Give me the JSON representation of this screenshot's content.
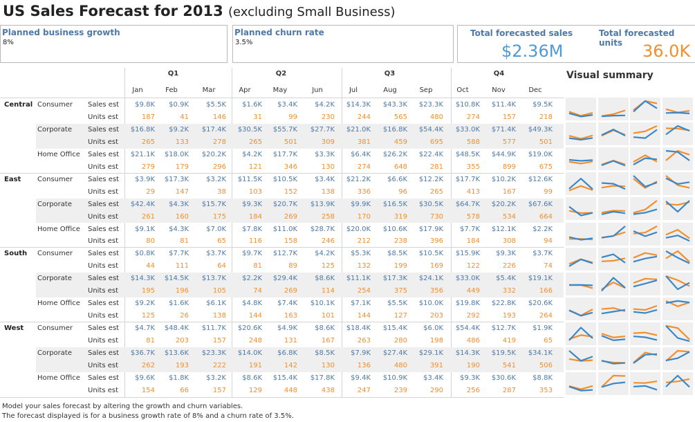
{
  "title": "US Sales Forecast for 2013",
  "subtitle": "(excluding Small Business)",
  "params": {
    "growth": {
      "label": "Planned business growth",
      "value": "8%"
    },
    "churn": {
      "label": "Planned churn rate",
      "value": "3.5%"
    }
  },
  "kpi": {
    "sales_label": "Total forecasted sales",
    "sales_value": "$2.36M",
    "units_label": "Total forecasted units",
    "units_value": "36.0K"
  },
  "visual_summary_title": "Visual summary",
  "colors": {
    "sales": "#4e79a7",
    "units": "#f28e2b",
    "spark_sales": "#3a87c8",
    "spark_units": "#f28e2b"
  },
  "quarters": [
    "Q1",
    "Q2",
    "Q3",
    "Q4"
  ],
  "months": [
    "Jan",
    "Feb",
    "Mar",
    "Apr",
    "May",
    "Jun",
    "Jul",
    "Aug",
    "Sep",
    "Oct",
    "Nov",
    "Dec"
  ],
  "measures": {
    "sales": "Sales est",
    "units": "Units est"
  },
  "regions": [
    {
      "name": "Central",
      "segments": [
        {
          "name": "Consumer",
          "sales": [
            "$9.8K",
            "$0.9K",
            "$5.5K",
            "$1.6K",
            "$3.4K",
            "$4.2K",
            "$14.3K",
            "$43.3K",
            "$23.3K",
            "$10.8K",
            "$11.4K",
            "$9.5K"
          ],
          "units": [
            "187",
            "41",
            "146",
            "31",
            "99",
            "230",
            "244",
            "565",
            "480",
            "274",
            "157",
            "218"
          ]
        },
        {
          "name": "Corporate",
          "sales": [
            "$16.8K",
            "$9.2K",
            "$17.4K",
            "$30.5K",
            "$55.7K",
            "$27.7K",
            "$21.0K",
            "$16.8K",
            "$54.4K",
            "$33.0K",
            "$71.4K",
            "$49.3K"
          ],
          "units": [
            "265",
            "133",
            "278",
            "265",
            "501",
            "309",
            "381",
            "459",
            "695",
            "588",
            "577",
            "501"
          ]
        },
        {
          "name": "Home Office",
          "sales": [
            "$21.1K",
            "$18.0K",
            "$20.2K",
            "$4.2K",
            "$17.7K",
            "$3.3K",
            "$6.4K",
            "$26.2K",
            "$22.4K",
            "$48.5K",
            "$44.9K",
            "$19.0K"
          ],
          "units": [
            "279",
            "179",
            "296",
            "121",
            "346",
            "130",
            "274",
            "648",
            "281",
            "355",
            "899",
            "675"
          ]
        }
      ]
    },
    {
      "name": "East",
      "segments": [
        {
          "name": "Consumer",
          "sales": [
            "$3.9K",
            "$17.3K",
            "$3.2K",
            "$11.5K",
            "$10.5K",
            "$3.4K",
            "$21.2K",
            "$6.6K",
            "$12.2K",
            "$17.7K",
            "$10.2K",
            "$12.6K"
          ],
          "units": [
            "29",
            "147",
            "38",
            "103",
            "152",
            "138",
            "336",
            "96",
            "265",
            "413",
            "167",
            "99"
          ]
        },
        {
          "name": "Corporate",
          "sales": [
            "$42.4K",
            "$4.3K",
            "$15.7K",
            "$9.3K",
            "$20.7K",
            "$13.9K",
            "$9.9K",
            "$16.5K",
            "$30.5K",
            "$64.7K",
            "$20.2K",
            "$67.6K"
          ],
          "units": [
            "261",
            "160",
            "175",
            "184",
            "269",
            "258",
            "170",
            "319",
            "730",
            "578",
            "534",
            "664"
          ]
        },
        {
          "name": "Home Office",
          "sales": [
            "$9.1K",
            "$4.3K",
            "$7.0K",
            "$7.8K",
            "$11.0K",
            "$28.7K",
            "$20.0K",
            "$10.6K",
            "$17.9K",
            "$7.7K",
            "$12.1K",
            "$2.2K"
          ],
          "units": [
            "80",
            "81",
            "65",
            "116",
            "158",
            "246",
            "212",
            "238",
            "396",
            "184",
            "308",
            "94"
          ]
        }
      ]
    },
    {
      "name": "South",
      "segments": [
        {
          "name": "Consumer",
          "sales": [
            "$0.8K",
            "$7.7K",
            "$3.7K",
            "$9.7K",
            "$12.7K",
            "$4.2K",
            "$5.3K",
            "$8.5K",
            "$10.5K",
            "$15.9K",
            "$9.3K",
            "$3.7K"
          ],
          "units": [
            "44",
            "111",
            "64",
            "81",
            "89",
            "125",
            "132",
            "199",
            "169",
            "122",
            "226",
            "74"
          ]
        },
        {
          "name": "Corporate",
          "sales": [
            "$14.3K",
            "$14.5K",
            "$13.7K",
            "$2.2K",
            "$29.4K",
            "$8.6K",
            "$11.1K",
            "$17.3K",
            "$24.1K",
            "$33.0K",
            "$5.4K",
            "$19.1K"
          ],
          "units": [
            "195",
            "196",
            "105",
            "74",
            "269",
            "114",
            "254",
            "375",
            "356",
            "449",
            "332",
            "166"
          ]
        },
        {
          "name": "Home Office",
          "sales": [
            "$9.2K",
            "$1.6K",
            "$6.1K",
            "$4.8K",
            "$7.4K",
            "$10.1K",
            "$7.1K",
            "$5.5K",
            "$10.0K",
            "$19.8K",
            "$22.8K",
            "$20.6K"
          ],
          "units": [
            "125",
            "26",
            "138",
            "144",
            "163",
            "101",
            "144",
            "127",
            "203",
            "292",
            "193",
            "264"
          ]
        }
      ]
    },
    {
      "name": "West",
      "segments": [
        {
          "name": "Consumer",
          "sales": [
            "$4.7K",
            "$48.4K",
            "$11.7K",
            "$20.6K",
            "$4.9K",
            "$8.6K",
            "$18.4K",
            "$15.4K",
            "$6.0K",
            "$54.4K",
            "$12.7K",
            "$1.9K"
          ],
          "units": [
            "81",
            "203",
            "157",
            "248",
            "131",
            "167",
            "263",
            "280",
            "198",
            "486",
            "419",
            "65"
          ]
        },
        {
          "name": "Corporate",
          "sales": [
            "$36.7K",
            "$13.6K",
            "$23.3K",
            "$14.0K",
            "$6.8K",
            "$8.5K",
            "$7.9K",
            "$27.4K",
            "$29.1K",
            "$14.3K",
            "$19.5K",
            "$34.1K"
          ],
          "units": [
            "262",
            "193",
            "222",
            "191",
            "142",
            "130",
            "136",
            "480",
            "391",
            "190",
            "541",
            "506"
          ]
        },
        {
          "name": "Home Office",
          "sales": [
            "$9.6K",
            "$1.8K",
            "$3.2K",
            "$8.6K",
            "$15.4K",
            "$17.8K",
            "$9.4K",
            "$10.9K",
            "$3.4K",
            "$9.3K",
            "$30.6K",
            "$8.8K"
          ],
          "units": [
            "154",
            "66",
            "157",
            "129",
            "448",
            "438",
            "247",
            "239",
            "290",
            "256",
            "287",
            "353"
          ]
        }
      ]
    }
  ],
  "footer": {
    "line1": "Model your sales forecast by altering the growth and churn variables.",
    "line2": "The forecast displayed is for a business growth rate of 8% and a churn rate of 3.5%."
  }
}
